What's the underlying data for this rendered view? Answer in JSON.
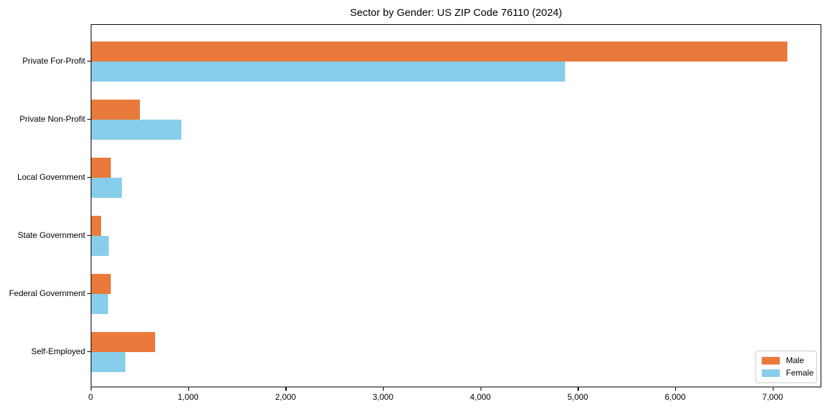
{
  "chart_data": {
    "type": "bar",
    "orientation": "horizontal",
    "title": "Sector by Gender: US ZIP Code 76110 (2024)",
    "categories": [
      "Private For-Profit",
      "Private Non-Profit",
      "Local Government",
      "State Government",
      "Federal Government",
      "Self-Employed"
    ],
    "series": [
      {
        "name": "Male",
        "color": "#EA7A3B",
        "values": [
          7145,
          495,
          200,
          100,
          200,
          655
        ]
      },
      {
        "name": "Female",
        "color": "#87CEEB",
        "values": [
          4865,
          925,
          315,
          180,
          170,
          350
        ]
      }
    ],
    "xlabel": "",
    "ylabel": "",
    "xlim": [
      0,
      7500
    ],
    "x_ticks": [
      0,
      1000,
      2000,
      3000,
      4000,
      5000,
      6000,
      7000
    ],
    "x_tick_labels": [
      "0",
      "1,000",
      "2,000",
      "3,000",
      "4,000",
      "5,000",
      "6,000",
      "7,000"
    ],
    "grid": false,
    "legend_position": "lower right",
    "colors": {
      "male": "#EA7A3B",
      "female": "#87CEEB",
      "spine": "#000000",
      "legend_border": "#cccccc"
    }
  }
}
